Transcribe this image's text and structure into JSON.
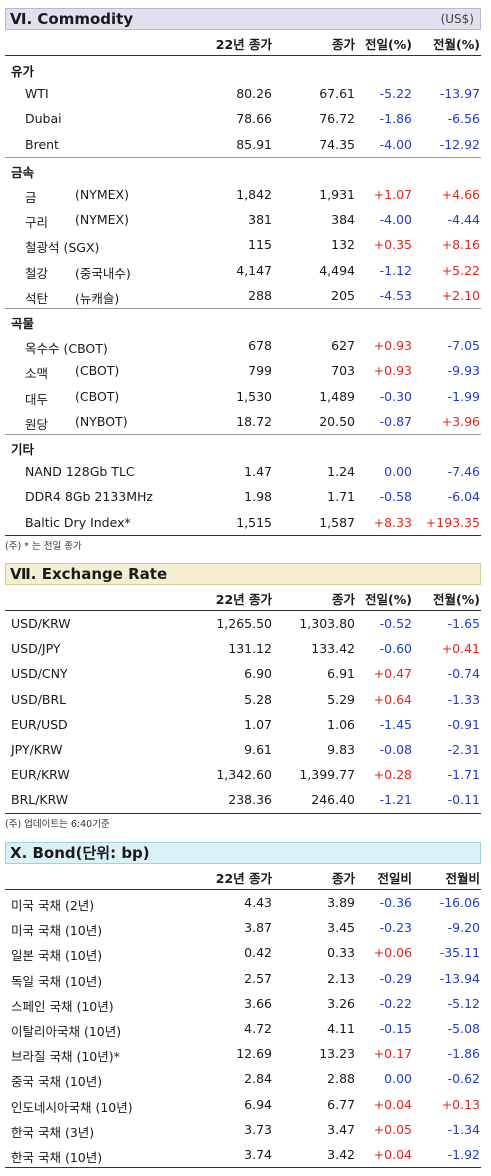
{
  "commodity": {
    "title": "Ⅵ. Commodity",
    "unit": "(US$)",
    "headers": [
      "22년 종가",
      "종가",
      "전일(%)",
      "전월(%)"
    ],
    "groups": [
      {
        "label": "유가",
        "rows": [
          {
            "name": "WTI",
            "name2": "",
            "c1": "80.26",
            "c2": "67.61",
            "d": "-5.22",
            "m": "-13.97"
          },
          {
            "name": "Dubai",
            "name2": "",
            "c1": "78.66",
            "c2": "76.72",
            "d": "-1.86",
            "m": "-6.56"
          },
          {
            "name": "Brent",
            "name2": "",
            "c1": "85.91",
            "c2": "74.35",
            "d": "-4.00",
            "m": "-12.92"
          }
        ]
      },
      {
        "label": "금속",
        "rows": [
          {
            "name": "금",
            "name2": "(NYMEX)",
            "c1": "1,842",
            "c2": "1,931",
            "d": "+1.07",
            "m": "+4.66"
          },
          {
            "name": "구리",
            "name2": "(NYMEX)",
            "c1": "381",
            "c2": "384",
            "d": "-4.00",
            "m": "-4.44"
          },
          {
            "name": "철광석 (SGX)",
            "name2": "",
            "c1": "115",
            "c2": "132",
            "d": "+0.35",
            "m": "+8.16"
          },
          {
            "name": "철강",
            "name2": "(중국내수)",
            "c1": "4,147",
            "c2": "4,494",
            "d": "-1.12",
            "m": "+5.22"
          },
          {
            "name": "석탄",
            "name2": "(뉴캐슬)",
            "c1": "288",
            "c2": "205",
            "d": "-4.53",
            "m": "+2.10"
          }
        ]
      },
      {
        "label": "곡물",
        "rows": [
          {
            "name": "옥수수 (CBOT)",
            "name2": "",
            "c1": "678",
            "c2": "627",
            "d": "+0.93",
            "m": "-7.05"
          },
          {
            "name": "소맥",
            "name2": "(CBOT)",
            "c1": "799",
            "c2": "703",
            "d": "+0.93",
            "m": "-9.93"
          },
          {
            "name": "대두",
            "name2": "(CBOT)",
            "c1": "1,530",
            "c2": "1,489",
            "d": "-0.30",
            "m": "-1.99"
          },
          {
            "name": "원당",
            "name2": "(NYBOT)",
            "c1": "18.72",
            "c2": "20.50",
            "d": "-0.87",
            "m": "+3.96"
          }
        ]
      },
      {
        "label": "기타",
        "rows": [
          {
            "name": "NAND 128Gb TLC",
            "name2": "",
            "c1": "1.47",
            "c2": "1.24",
            "d": "0.00",
            "m": "-7.46"
          },
          {
            "name": "DDR4 8Gb 2133MHz",
            "name2": "",
            "c1": "1.98",
            "c2": "1.71",
            "d": "-0.58",
            "m": "-6.04"
          },
          {
            "name": "Baltic Dry Index*",
            "name2": "",
            "c1": "1,515",
            "c2": "1,587",
            "d": "+8.33",
            "m": "+193.35"
          }
        ]
      }
    ],
    "note": "(주) * 는 전일 종가"
  },
  "fx": {
    "title": "Ⅶ. Exchange Rate",
    "headers": [
      "22년 종가",
      "종가",
      "전일(%)",
      "전월(%)"
    ],
    "rows": [
      {
        "name": "USD/KRW",
        "c1": "1,265.50",
        "c2": "1,303.80",
        "d": "-0.52",
        "m": "-1.65"
      },
      {
        "name": "USD/JPY",
        "c1": "131.12",
        "c2": "133.42",
        "d": "-0.60",
        "m": "+0.41"
      },
      {
        "name": "USD/CNY",
        "c1": "6.90",
        "c2": "6.91",
        "d": "+0.47",
        "m": "-0.74"
      },
      {
        "name": "USD/BRL",
        "c1": "5.28",
        "c2": "5.29",
        "d": "+0.64",
        "m": "-1.33"
      },
      {
        "name": "EUR/USD",
        "c1": "1.07",
        "c2": "1.06",
        "d": "-1.45",
        "m": "-0.91"
      },
      {
        "name": "JPY/KRW",
        "c1": "9.61",
        "c2": "9.83",
        "d": "-0.08",
        "m": "-2.31"
      },
      {
        "name": "EUR/KRW",
        "c1": "1,342.60",
        "c2": "1,399.77",
        "d": "+0.28",
        "m": "-1.71"
      },
      {
        "name": "BRL/KRW",
        "c1": "238.36",
        "c2": "246.40",
        "d": "-1.21",
        "m": "-0.11"
      }
    ],
    "note": "(주) 업데이트는 6:40기준"
  },
  "bond": {
    "title": "Ⅹ. Bond(단위: bp)",
    "headers": [
      "22년 종가",
      "종가",
      "전일비",
      "전월비"
    ],
    "rows": [
      {
        "name": "미국 국채 (2년)",
        "c1": "4.43",
        "c2": "3.89",
        "d": "-0.36",
        "m": "-16.06"
      },
      {
        "name": "미국 국채 (10년)",
        "c1": "3.87",
        "c2": "3.45",
        "d": "-0.23",
        "m": "-9.20"
      },
      {
        "name": "일본 국채 (10년)",
        "c1": "0.42",
        "c2": "0.33",
        "d": "+0.06",
        "m": "-35.11"
      },
      {
        "name": "독일 국채 (10년)",
        "c1": "2.57",
        "c2": "2.13",
        "d": "-0.29",
        "m": "-13.94"
      },
      {
        "name": "스페인 국채 (10년)",
        "c1": "3.66",
        "c2": "3.26",
        "d": "-0.22",
        "m": "-5.12"
      },
      {
        "name": "이탈리아국채 (10년)",
        "c1": "4.72",
        "c2": "4.11",
        "d": "-0.15",
        "m": "-5.08"
      },
      {
        "name": "브라질 국채 (10년)*",
        "c1": "12.69",
        "c2": "13.23",
        "d": "+0.17",
        "m": "-1.86"
      },
      {
        "name": "중국 국채 (10년)",
        "c1": "2.84",
        "c2": "2.88",
        "d": "0.00",
        "m": "-0.62"
      },
      {
        "name": "인도네시아국채 (10년)",
        "c1": "6.94",
        "c2": "6.77",
        "d": "+0.04",
        "m": "+0.13"
      },
      {
        "name": "한국 국채 (3년)",
        "c1": "3.73",
        "c2": "3.47",
        "d": "+0.05",
        "m": "-1.34"
      },
      {
        "name": "한국 국채 (10년)",
        "c1": "3.74",
        "c2": "3.42",
        "d": "+0.04",
        "m": "-1.92"
      }
    ]
  },
  "colors": {
    "up": "#e8231a",
    "down": "#1f3ccf"
  }
}
